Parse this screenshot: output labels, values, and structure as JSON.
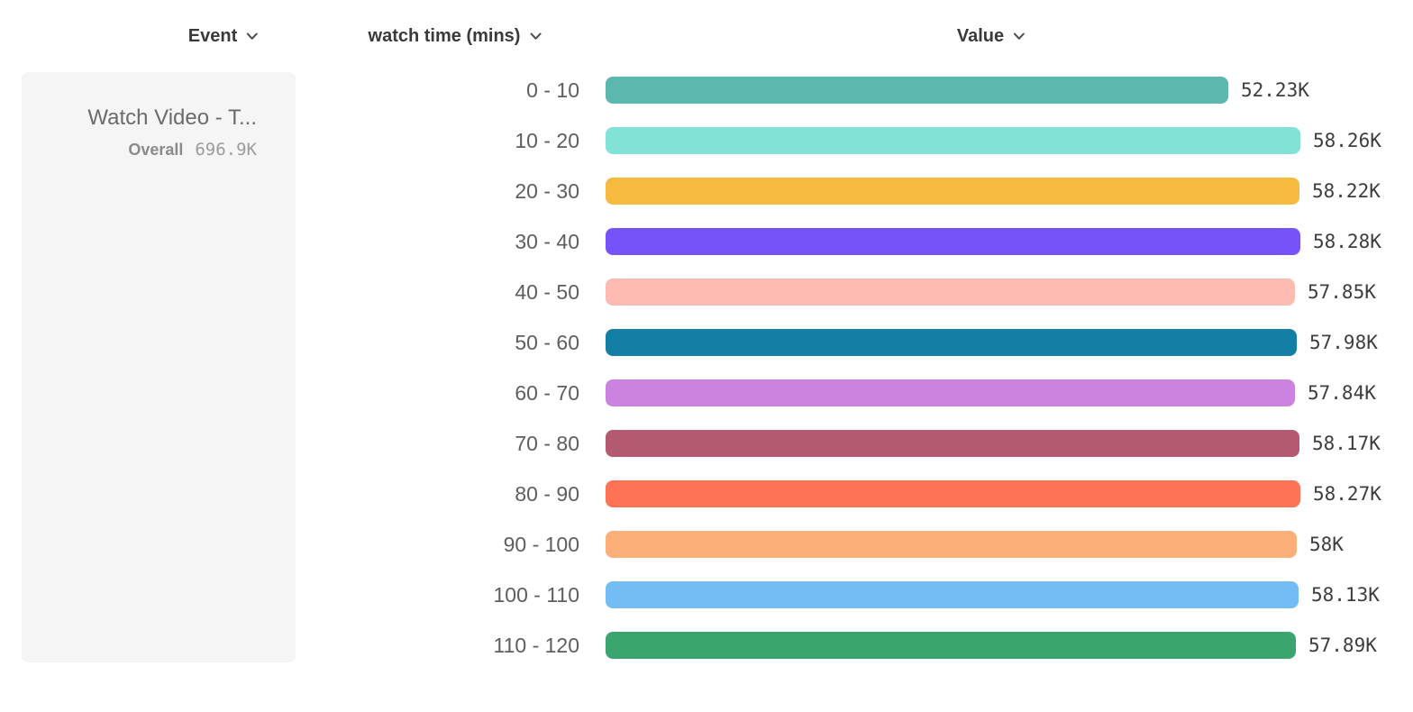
{
  "header": {
    "columns": [
      {
        "label": "Event"
      },
      {
        "label": "watch time (mins)"
      },
      {
        "label": "Value"
      }
    ]
  },
  "event_card": {
    "title": "Watch Video - T...",
    "overall_label": "Overall",
    "overall_value": "696.9K"
  },
  "chart_data": {
    "type": "bar",
    "orientation": "horizontal",
    "title": "",
    "category_axis_label": "watch time (mins)",
    "value_axis_label": "Value",
    "series_name": "Watch Video - T...",
    "series_overall_display": "696.9K",
    "categories": [
      "0 - 10",
      "10 - 20",
      "20 - 30",
      "30 - 40",
      "40 - 50",
      "50 - 60",
      "60 - 70",
      "70 - 80",
      "80 - 90",
      "90 - 100",
      "100 - 110",
      "110 - 120"
    ],
    "values": [
      52230,
      58260,
      58220,
      58280,
      57850,
      57980,
      57840,
      58170,
      58270,
      58000,
      58130,
      57890
    ],
    "display_values": [
      "52.23K",
      "58.26K",
      "58.22K",
      "58.28K",
      "57.85K",
      "57.98K",
      "57.84K",
      "58.17K",
      "58.27K",
      "58K",
      "58.13K",
      "57.89K"
    ],
    "colors": [
      "#5BB8AF",
      "#81E2D5",
      "#F6BB3E",
      "#7653F9",
      "#FDBBB2",
      "#137FA5",
      "#CC83E0",
      "#B45A70",
      "#FC7356",
      "#FDAF79",
      "#73BDF4",
      "#3BA56F"
    ],
    "xlim": [
      0,
      58280
    ],
    "grid": false,
    "legend": false
  }
}
